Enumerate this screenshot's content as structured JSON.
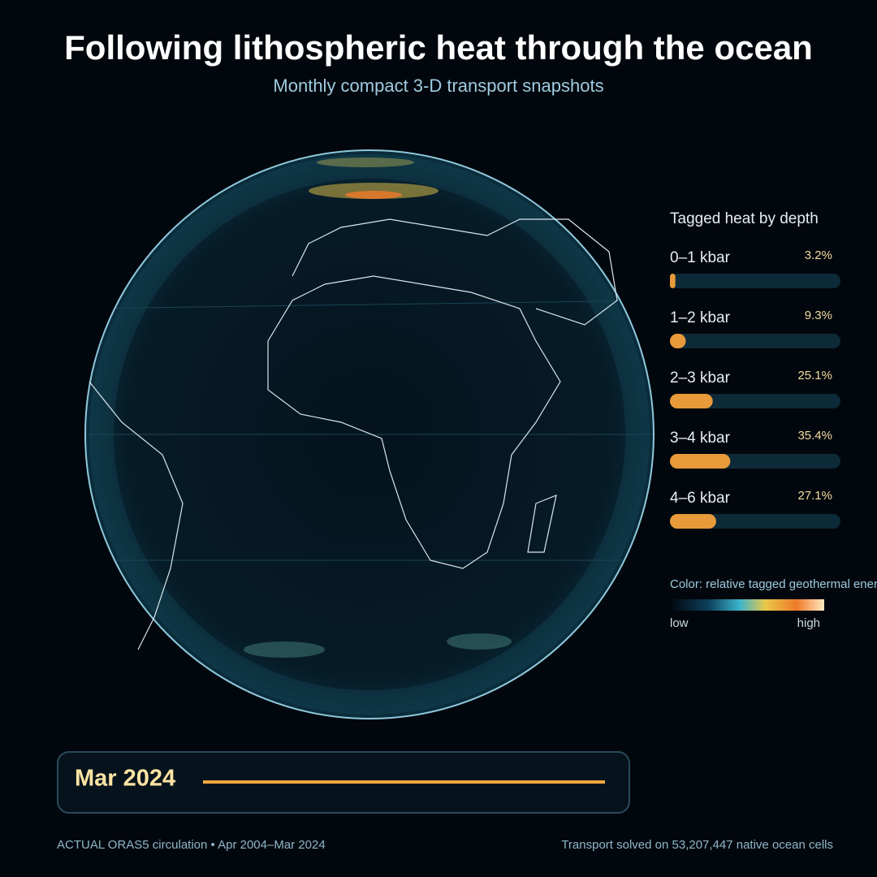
{
  "title": "Following lithospheric heat through the ocean",
  "subtitle": "Monthly compact 3-D transport snapshots",
  "chart_data": {
    "type": "bar",
    "orientation": "horizontal",
    "title": "Tagged heat by depth",
    "categories": [
      "0–1 kbar",
      "1–2 kbar",
      "2–3 kbar",
      "3–4 kbar",
      "4–6 kbar"
    ],
    "values": [
      3.2,
      9.3,
      25.1,
      35.4,
      27.1
    ],
    "value_labels": [
      "3.2%",
      "9.3%",
      "25.1%",
      "35.4%",
      "27.1%"
    ],
    "xlim": [
      0,
      100
    ],
    "color": "#e89a3a",
    "track_color": "#0d2a38"
  },
  "colorbar": {
    "title": "Color: relative tagged geothermal energy",
    "low": "low",
    "high": "high"
  },
  "timeline": {
    "label": "Mar 2024"
  },
  "footer": {
    "left": "ACTUAL ORAS5 circulation • Apr 2004–Mar 2024",
    "right": "Transport solved on 53,207,447 native ocean cells"
  }
}
